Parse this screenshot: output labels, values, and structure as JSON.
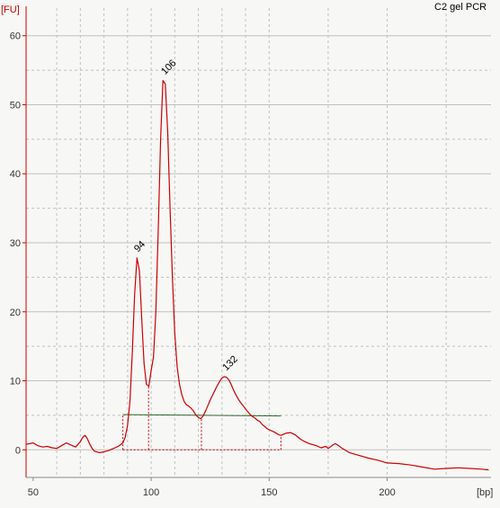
{
  "chart_data": {
    "type": "line",
    "title": "C2 gel PCR",
    "xlabel": "[bp]",
    "ylabel": "[FU]",
    "xlim": [
      47,
      244
    ],
    "ylim": [
      -4,
      64
    ],
    "grid": true,
    "x_ticks": [
      50,
      100,
      150,
      200
    ],
    "y_ticks": [
      0,
      10,
      20,
      30,
      40,
      50,
      60
    ],
    "x_grid": [
      60,
      70,
      80,
      90,
      100,
      110,
      120,
      130,
      140,
      150,
      175,
      200,
      225
    ],
    "colors": {
      "trace": "#cc0000",
      "axis": "#cc0000",
      "grid": "#c0c0c0",
      "baseline": "#2e6b2e",
      "unit_label": "#cc0000",
      "background": "#f7f7f5"
    },
    "series": [
      {
        "points": [
          [
            47,
            0.8
          ],
          [
            50,
            1.0
          ],
          [
            52,
            0.6
          ],
          [
            54,
            0.4
          ],
          [
            56,
            0.5
          ],
          [
            58,
            0.3
          ],
          [
            60,
            0.2
          ],
          [
            62,
            0.6
          ],
          [
            64,
            1.0
          ],
          [
            66,
            0.7
          ],
          [
            68,
            0.4
          ],
          [
            70,
            1.2
          ],
          [
            71,
            1.8
          ],
          [
            72,
            2.1
          ],
          [
            73,
            1.6
          ],
          [
            74,
            0.8
          ],
          [
            75,
            0.2
          ],
          [
            76,
            -0.2
          ],
          [
            78,
            -0.4
          ],
          [
            80,
            -0.3
          ],
          [
            82,
            -0.1
          ],
          [
            84,
            0.2
          ],
          [
            86,
            0.5
          ],
          [
            88,
            1.0
          ],
          [
            89,
            1.8
          ],
          [
            90,
            3.5
          ],
          [
            91,
            7.0
          ],
          [
            92,
            14.0
          ],
          [
            93,
            22.5
          ],
          [
            94,
            27.8
          ],
          [
            95,
            26.0
          ],
          [
            96,
            19.0
          ],
          [
            97,
            12.5
          ],
          [
            98,
            9.5
          ],
          [
            99,
            9.2
          ],
          [
            100,
            11.5
          ],
          [
            101,
            13.5
          ],
          [
            102,
            20.0
          ],
          [
            103,
            32.0
          ],
          [
            104,
            45.0
          ],
          [
            105,
            53.5
          ],
          [
            106,
            53.0
          ],
          [
            107,
            46.0
          ],
          [
            108,
            35.0
          ],
          [
            109,
            25.0
          ],
          [
            110,
            17.0
          ],
          [
            111,
            12.0
          ],
          [
            112,
            9.5
          ],
          [
            113,
            8.0
          ],
          [
            114,
            7.0
          ],
          [
            115,
            6.5
          ],
          [
            116,
            6.3
          ],
          [
            117,
            6.0
          ],
          [
            118,
            5.6
          ],
          [
            119,
            5.0
          ],
          [
            120,
            4.7
          ],
          [
            121,
            4.5
          ],
          [
            122,
            4.9
          ],
          [
            123,
            5.6
          ],
          [
            124,
            6.4
          ],
          [
            125,
            7.2
          ],
          [
            126,
            7.9
          ],
          [
            127,
            8.6
          ],
          [
            128,
            9.3
          ],
          [
            129,
            9.9
          ],
          [
            130,
            10.4
          ],
          [
            131,
            10.6
          ],
          [
            132,
            10.5
          ],
          [
            133,
            10.1
          ],
          [
            134,
            9.4
          ],
          [
            135,
            8.6
          ],
          [
            136,
            7.9
          ],
          [
            137,
            7.3
          ],
          [
            138,
            6.8
          ],
          [
            139,
            6.4
          ],
          [
            140,
            5.9
          ],
          [
            141,
            5.5
          ],
          [
            142,
            5.1
          ],
          [
            143,
            4.8
          ],
          [
            144,
            4.6
          ],
          [
            145,
            4.3
          ],
          [
            146,
            4.1
          ],
          [
            147,
            3.7
          ],
          [
            148,
            3.4
          ],
          [
            149,
            3.1
          ],
          [
            150,
            2.9
          ],
          [
            152,
            2.6
          ],
          [
            154,
            2.2
          ],
          [
            155,
            2.1
          ],
          [
            157,
            2.4
          ],
          [
            159,
            2.5
          ],
          [
            161,
            2.2
          ],
          [
            163,
            1.6
          ],
          [
            165,
            1.2
          ],
          [
            167,
            0.9
          ],
          [
            170,
            0.6
          ],
          [
            172,
            0.3
          ],
          [
            174,
            0.5
          ],
          [
            175,
            0.2
          ],
          [
            177,
            0.7
          ],
          [
            178,
            0.9
          ],
          [
            179,
            0.7
          ],
          [
            181,
            0.2
          ],
          [
            184,
            -0.4
          ],
          [
            188,
            -0.8
          ],
          [
            192,
            -1.2
          ],
          [
            196,
            -1.5
          ],
          [
            200,
            -1.9
          ],
          [
            205,
            -2.0
          ],
          [
            210,
            -2.2
          ],
          [
            215,
            -2.5
          ],
          [
            220,
            -2.8
          ],
          [
            225,
            -2.7
          ],
          [
            230,
            -2.6
          ],
          [
            235,
            -2.7
          ],
          [
            240,
            -2.8
          ],
          [
            243,
            -2.9
          ]
        ]
      }
    ],
    "annotations": [
      "94",
      "106",
      "132"
    ],
    "peaks": [
      {
        "label": "94",
        "x": 94,
        "y": 27.8
      },
      {
        "label": "106",
        "x": 105.5,
        "y": 53.5
      },
      {
        "label": "132",
        "x": 131.5,
        "y": 10.6
      }
    ],
    "baseline_segment": {
      "x0": 88,
      "y0": 5.1,
      "x1": 155,
      "y1": 4.9
    },
    "integration_dividers": [
      {
        "x": 88,
        "y0": 0.0,
        "y1": 5.1
      },
      {
        "x": 98.9,
        "y0": 0.0,
        "y1": 9.2
      },
      {
        "x": 121.3,
        "y0": 0.0,
        "y1": 4.5
      },
      {
        "x": 155,
        "y0": 0.0,
        "y1": 2.1
      }
    ],
    "integration_floor": {
      "x0": 88,
      "x1": 155,
      "y": 0.0
    }
  }
}
